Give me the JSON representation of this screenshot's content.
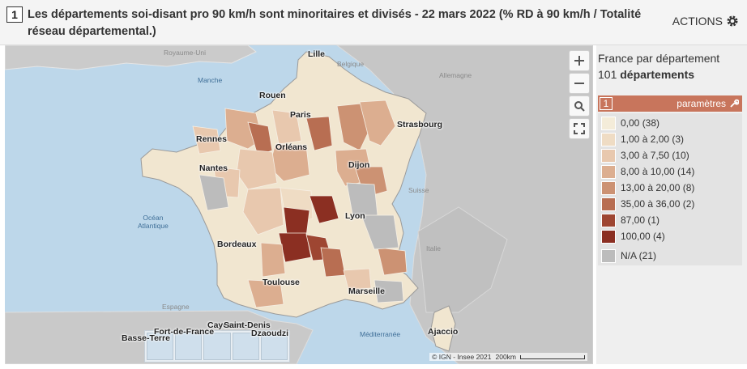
{
  "header": {
    "number": "1",
    "title": "Les départements soi-disant pro 90 km/h sont minoritaires et divisés - 22 mars 2022 (% RD à 90 km/h / Totalité réseau départemental.)",
    "actions_label": "ACTIONS"
  },
  "map": {
    "cities": [
      "Lille",
      "Rouen",
      "Paris",
      "Strasbourg",
      "Rennes",
      "Orléans",
      "Nantes",
      "Dijon",
      "Lyon",
      "Bordeaux",
      "Toulouse",
      "Marseille",
      "Ajaccio"
    ],
    "regions": [
      "Royaume-Uni",
      "Belgique",
      "Allemagne",
      "Suisse",
      "Italie",
      "Espagne"
    ],
    "seas": [
      "Manche",
      "Océan\nAtlantique",
      "Méditerranée"
    ],
    "overseas": [
      "Basse-Terre",
      "Fort-de-France",
      "Cayenne",
      "Saint-Denis",
      "Dzaoudzi"
    ],
    "attribution": "© IGN - Insee 2021",
    "scale": "200km"
  },
  "legend": {
    "title": "France par département",
    "count_number": "101",
    "count_label": "départements",
    "params_number": "1",
    "params_label": "paramètres",
    "classes": [
      {
        "label": "0,00 (38)",
        "color": "#f4ecd9"
      },
      {
        "label": "1,00 à 2,00 (3)",
        "color": "#efdcc4"
      },
      {
        "label": "3,00 à 7,50 (10)",
        "color": "#e8c8ae"
      },
      {
        "label": "8,00 à 10,00 (14)",
        "color": "#dcae90"
      },
      {
        "label": "13,00 à 20,00 (8)",
        "color": "#cc9273"
      },
      {
        "label": "35,00 à 36,00 (2)",
        "color": "#b86e52"
      },
      {
        "label": "87,00 (1)",
        "color": "#9e4632"
      },
      {
        "label": "100,00 (4)",
        "color": "#8b2f22"
      },
      {
        "label": "N/A (21)",
        "color": "#bcbcbc"
      }
    ]
  }
}
